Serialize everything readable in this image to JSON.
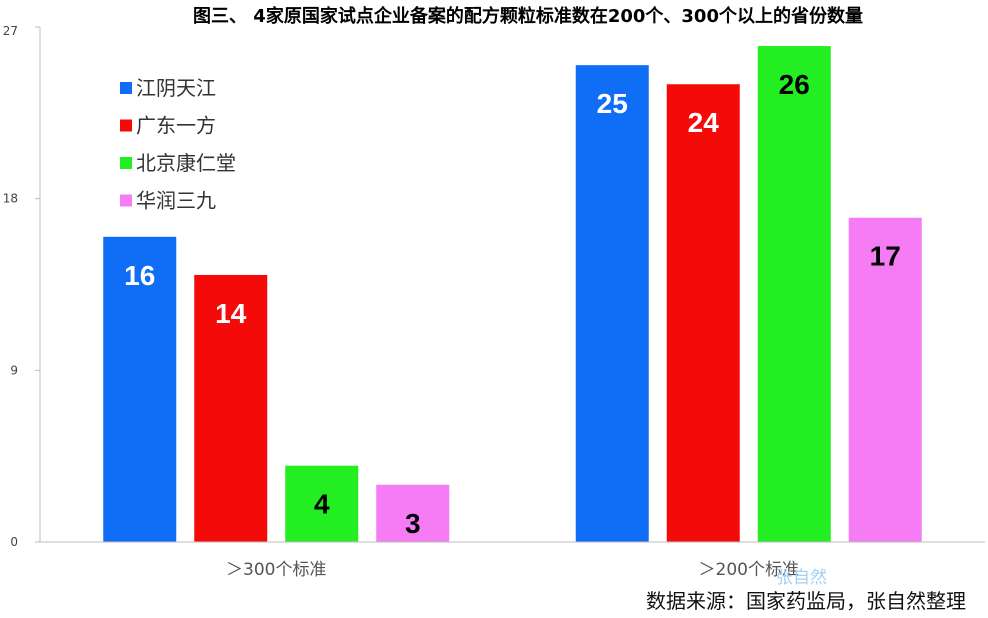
{
  "chart_data": {
    "type": "bar",
    "title": "图三、 4家原国家试点企业备案的配方颗粒标准数在200个、300个以上的省份数量",
    "categories": [
      "＞300个标准",
      "＞200个标准"
    ],
    "series": [
      {
        "name": "江阴天江",
        "color": "#0f6ef5",
        "label_color": "#ffffff",
        "values": [
          16,
          25
        ]
      },
      {
        "name": "广东一方",
        "color": "#f50a0a",
        "label_color": "#ffffff",
        "values": [
          14,
          24
        ]
      },
      {
        "name": "北京康仁堂",
        "color": "#22ee22",
        "label_color": "#000000",
        "values": [
          4,
          26
        ]
      },
      {
        "name": "华润三九",
        "color": "#f57cf5",
        "label_color": "#000000",
        "values": [
          3,
          17
        ]
      }
    ],
    "y_ticks": [
      0,
      9,
      18,
      27
    ],
    "ylim": [
      0,
      27
    ],
    "legend_position": "top-left",
    "grid": false
  },
  "source_note": "数据来源：国家药监局，张自然整理",
  "watermark": "张自然"
}
